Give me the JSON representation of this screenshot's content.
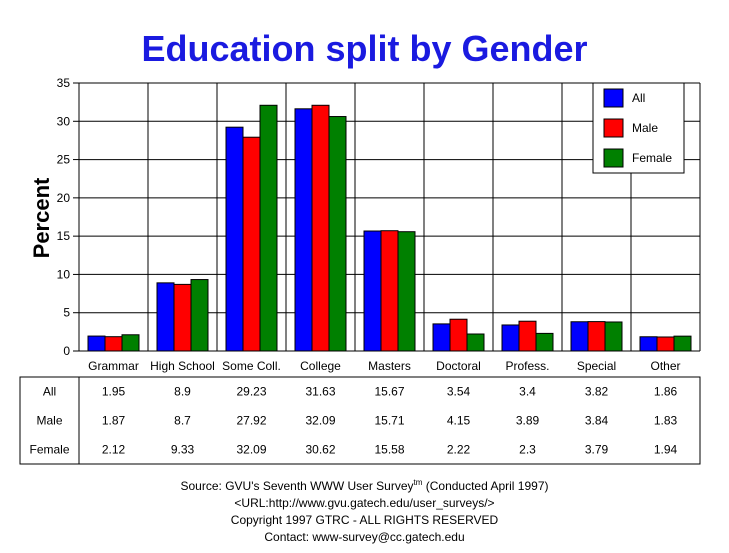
{
  "chart_data": {
    "type": "bar",
    "title": "Education split by Gender",
    "ylabel": "Percent",
    "xlabel": "",
    "ylim": [
      0,
      35
    ],
    "yticks": [
      0,
      5,
      10,
      15,
      20,
      25,
      30,
      35
    ],
    "grid": true,
    "legend_position": "top-right",
    "categories": [
      "Grammar",
      "High School",
      "Some Coll.",
      "College",
      "Masters",
      "Doctoral",
      "Profess.",
      "Special",
      "Other"
    ],
    "series": [
      {
        "name": "All",
        "color": "#0000ff",
        "values": [
          1.95,
          8.9,
          29.23,
          31.63,
          15.67,
          3.54,
          3.4,
          3.82,
          1.86
        ]
      },
      {
        "name": "Male",
        "color": "#ff0000",
        "values": [
          1.87,
          8.7,
          27.92,
          32.09,
          15.71,
          4.15,
          3.89,
          3.84,
          1.83
        ]
      },
      {
        "name": "Female",
        "color": "#008000",
        "values": [
          2.12,
          9.33,
          32.09,
          30.62,
          15.58,
          2.22,
          2.3,
          3.79,
          1.94
        ]
      }
    ]
  },
  "footer": {
    "source_prefix": "Source: GVU's Seventh WWW User Survey",
    "source_sup": "tm",
    "source_suffix": " (Conducted April 1997)",
    "url": "<URL:http://www.gvu.gatech.edu/user_surveys/>",
    "copyright": "Copyright 1997 GTRC - ALL RIGHTS RESERVED",
    "contact": "Contact: www-survey@cc.gatech.edu"
  }
}
